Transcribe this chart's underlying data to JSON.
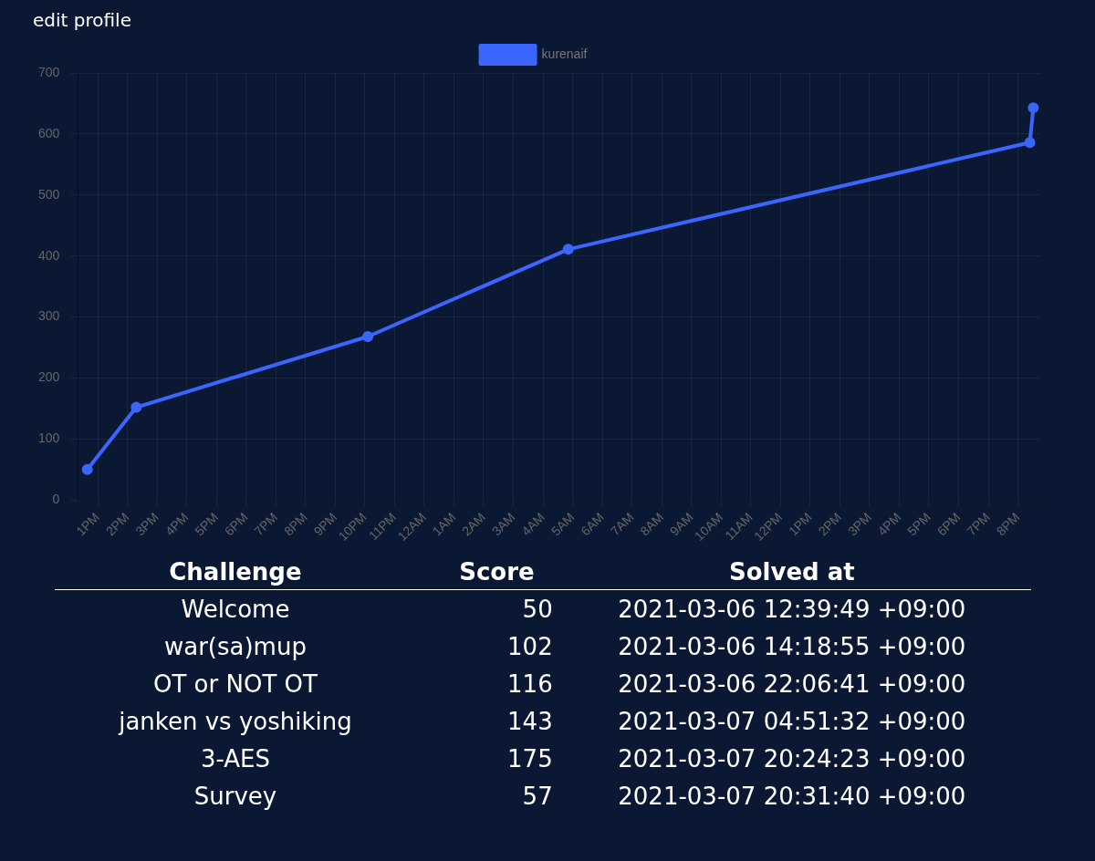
{
  "chart_data": [
    {
      "type": "line",
      "annotations": [
        "edit profile"
      ],
      "x": [
        "2021-03-06T12:39",
        "2021-03-06T14:18",
        "2021-03-06T22:06",
        "2021-03-07T04:51",
        "2021-03-07T20:24",
        "2021-03-07T20:31"
      ],
      "series": [
        {
          "name": "kurenaif",
          "color": "#3a66ff",
          "values": [
            50,
            152,
            268,
            411,
            586,
            643
          ]
        }
      ],
      "xlim": [
        "2021-03-06T12:20",
        "2021-03-07T20:45"
      ],
      "xticks": [
        {
          "value": "2021-03-06T13:00",
          "label": "1PM"
        },
        {
          "value": "2021-03-06T14:00",
          "label": "2PM"
        },
        {
          "value": "2021-03-06T15:00",
          "label": "3PM"
        },
        {
          "value": "2021-03-06T16:00",
          "label": "4PM"
        },
        {
          "value": "2021-03-06T17:00",
          "label": "5PM"
        },
        {
          "value": "2021-03-06T18:00",
          "label": "6PM"
        },
        {
          "value": "2021-03-06T19:00",
          "label": "7PM"
        },
        {
          "value": "2021-03-06T20:00",
          "label": "8PM"
        },
        {
          "value": "2021-03-06T21:00",
          "label": "9PM"
        },
        {
          "value": "2021-03-06T22:00",
          "label": "10PM"
        },
        {
          "value": "2021-03-06T23:00",
          "label": "11PM"
        },
        {
          "value": "2021-03-07T00:00",
          "label": "12AM"
        },
        {
          "value": "2021-03-07T01:00",
          "label": "1AM"
        },
        {
          "value": "2021-03-07T02:00",
          "label": "2AM"
        },
        {
          "value": "2021-03-07T03:00",
          "label": "3AM"
        },
        {
          "value": "2021-03-07T04:00",
          "label": "4AM"
        },
        {
          "value": "2021-03-07T05:00",
          "label": "5AM"
        },
        {
          "value": "2021-03-07T06:00",
          "label": "6AM"
        },
        {
          "value": "2021-03-07T07:00",
          "label": "7AM"
        },
        {
          "value": "2021-03-07T08:00",
          "label": "8AM"
        },
        {
          "value": "2021-03-07T09:00",
          "label": "9AM"
        },
        {
          "value": "2021-03-07T10:00",
          "label": "10AM"
        },
        {
          "value": "2021-03-07T11:00",
          "label": "11AM"
        },
        {
          "value": "2021-03-07T12:00",
          "label": "12PM"
        },
        {
          "value": "2021-03-07T13:00",
          "label": "1PM"
        },
        {
          "value": "2021-03-07T14:00",
          "label": "2PM"
        },
        {
          "value": "2021-03-07T15:00",
          "label": "3PM"
        },
        {
          "value": "2021-03-07T16:00",
          "label": "4PM"
        },
        {
          "value": "2021-03-07T17:00",
          "label": "5PM"
        },
        {
          "value": "2021-03-07T18:00",
          "label": "6PM"
        },
        {
          "value": "2021-03-07T19:00",
          "label": "7PM"
        },
        {
          "value": "2021-03-07T20:00",
          "label": "8PM"
        }
      ],
      "ylim": [
        0,
        700
      ],
      "yticks": [
        0,
        100,
        200,
        300,
        400,
        500,
        600,
        700
      ],
      "grid": true,
      "legend": "top",
      "marker": "circle",
      "line_style": "solid"
    },
    {
      "type": "other",
      "categories": [
        "Welcome",
        "war(sa)mup",
        "OT or NOT OT",
        "janken vs yoshiking",
        "3-AES",
        "Survey"
      ],
      "values": [
        50,
        102,
        116,
        143,
        175,
        57
      ],
      "data_labels": true,
      "annotations": [
        "Challenge",
        "Score",
        "Solved at",
        "2021-03-06 12:39:49 +09:00",
        "2021-03-06 14:18:55 +09:00",
        "2021-03-06 22:06:41 +09:00",
        "2021-03-07 04:51:32 +09:00",
        "2021-03-07 20:24:23 +09:00",
        "2021-03-07 20:31:40 +09:00"
      ]
    }
  ]
}
